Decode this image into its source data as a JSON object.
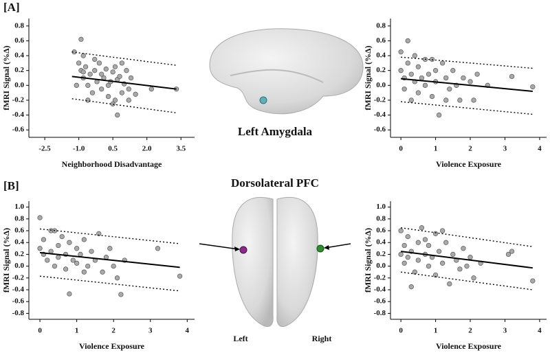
{
  "figure": {
    "panel_a": "[A]",
    "panel_b": "[B]",
    "region_a": "Left Amygdala",
    "region_b": "Dorsolateral PFC",
    "left": "Left",
    "right": "Right"
  },
  "chart_data": [
    {
      "type": "scatter",
      "xlabel": "Neighborhood Disadvantage",
      "ylabel": "fMRI Signal (%Δ)",
      "xlim": [
        -3.2,
        4.1
      ],
      "ylim": [
        -0.7,
        0.9
      ],
      "xticks": [
        -2.5,
        {
          "value": -1,
          "label": "-1.0"
        },
        0.5,
        {
          "value": 2,
          "label": "2.0"
        },
        3.5
      ],
      "yticks": [
        0.8,
        0.6,
        0.4,
        0.2,
        {
          "value": 0,
          "label": "0.0"
        },
        -0.2,
        -0.4,
        -0.6
      ],
      "points": [
        [
          -1.2,
          0.45
        ],
        [
          -1.0,
          0.3
        ],
        [
          -0.9,
          0.2
        ],
        [
          -0.8,
          0.1
        ],
        [
          -0.7,
          0.25
        ],
        [
          -0.6,
          0.0
        ],
        [
          -0.5,
          0.15
        ],
        [
          -0.4,
          -0.1
        ],
        [
          -0.3,
          0.2
        ],
        [
          -0.2,
          0.05
        ],
        [
          -0.1,
          0.3
        ],
        [
          0.0,
          -0.05
        ],
        [
          0.1,
          0.1
        ],
        [
          0.2,
          0.22
        ],
        [
          0.3,
          -0.15
        ],
        [
          0.4,
          0.05
        ],
        [
          0.5,
          0.18
        ],
        [
          0.6,
          -0.2
        ],
        [
          0.7,
          0.08
        ],
        [
          0.8,
          0.12
        ],
        [
          0.9,
          -0.1
        ],
        [
          1.0,
          0.02
        ],
        [
          1.1,
          0.2
        ],
        [
          1.2,
          -0.05
        ],
        [
          1.3,
          0.1
        ],
        [
          1.5,
          -0.12
        ],
        [
          -0.9,
          0.62
        ],
        [
          -0.6,
          -0.2
        ],
        [
          -0.3,
          0.35
        ],
        [
          0.0,
          0.15
        ],
        [
          0.3,
          0.0
        ],
        [
          0.6,
          0.25
        ],
        [
          0.9,
          0.3
        ],
        [
          1.2,
          -0.2
        ],
        [
          -1.1,
          0.0
        ],
        [
          -0.8,
          0.18
        ],
        [
          0.5,
          -0.25
        ],
        [
          2.2,
          -0.05
        ],
        [
          3.3,
          -0.05
        ],
        [
          -0.8,
          0.4
        ],
        [
          0.7,
          -0.4
        ]
      ],
      "fit": {
        "x": [
          -1.3,
          3.3
        ],
        "values": [
          0.12,
          -0.05
        ]
      },
      "upper": {
        "x": [
          -1.3,
          3.3
        ],
        "values": [
          0.45,
          0.27
        ]
      },
      "lower": {
        "x": [
          -1.3,
          3.3
        ],
        "values": [
          -0.18,
          -0.37
        ]
      }
    },
    {
      "type": "scatter",
      "xlabel": "Violence Exposure",
      "ylabel": "fMRI Signal (%Δ)",
      "xlim": [
        -0.3,
        4.2
      ],
      "ylim": [
        -0.7,
        0.9
      ],
      "xticks": [
        0,
        1,
        2,
        3,
        4
      ],
      "yticks": [
        0.8,
        0.6,
        0.4,
        0.2,
        {
          "value": 0,
          "label": "0.0"
        },
        -0.2,
        -0.4,
        -0.6
      ],
      "points": [
        [
          0.0,
          0.45
        ],
        [
          0.0,
          0.2
        ],
        [
          0.1,
          0.1
        ],
        [
          0.1,
          -0.05
        ],
        [
          0.2,
          0.6
        ],
        [
          0.2,
          0.3
        ],
        [
          0.3,
          0.15
        ],
        [
          0.3,
          -0.2
        ],
        [
          0.4,
          0.05
        ],
        [
          0.5,
          0.25
        ],
        [
          0.5,
          -0.1
        ],
        [
          0.6,
          0.1
        ],
        [
          0.7,
          0.35
        ],
        [
          0.7,
          0.0
        ],
        [
          0.8,
          0.15
        ],
        [
          0.9,
          -0.15
        ],
        [
          1.0,
          0.2
        ],
        [
          1.0,
          0.05
        ],
        [
          1.1,
          -0.4
        ],
        [
          1.2,
          0.3
        ],
        [
          1.3,
          0.1
        ],
        [
          1.4,
          -0.05
        ],
        [
          1.5,
          0.2
        ],
        [
          1.6,
          0.0
        ],
        [
          1.7,
          -0.2
        ],
        [
          1.8,
          0.1
        ],
        [
          2.0,
          0.05
        ],
        [
          2.1,
          -0.2
        ],
        [
          2.2,
          0.15
        ],
        [
          2.5,
          0.0
        ],
        [
          3.2,
          0.12
        ],
        [
          3.8,
          -0.02
        ],
        [
          0.4,
          0.4
        ],
        [
          0.9,
          0.35
        ],
        [
          1.3,
          -0.2
        ]
      ],
      "fit": {
        "x": [
          0,
          3.8
        ],
        "values": [
          0.09,
          -0.08
        ]
      },
      "upper": {
        "x": [
          0,
          3.8
        ],
        "values": [
          0.38,
          0.23
        ]
      },
      "lower": {
        "x": [
          0,
          3.8
        ],
        "values": [
          -0.22,
          -0.39
        ]
      }
    },
    {
      "type": "scatter",
      "xlabel": "Violence Exposure",
      "ylabel": "fMRI Signal (%Δ)",
      "xlim": [
        -0.3,
        4.2
      ],
      "ylim": [
        -0.9,
        1.1
      ],
      "xticks": [
        0,
        1,
        2,
        3,
        4
      ],
      "yticks": [
        {
          "value": 1,
          "label": "1.0"
        },
        0.8,
        0.6,
        0.4,
        0.2,
        {
          "value": 0,
          "label": "0.0"
        },
        -0.2,
        -0.4,
        -0.6,
        -0.8
      ],
      "points": [
        [
          0.0,
          0.82
        ],
        [
          0.0,
          0.3
        ],
        [
          0.1,
          0.2
        ],
        [
          0.1,
          0.45
        ],
        [
          0.2,
          0.1
        ],
        [
          0.3,
          0.6
        ],
        [
          0.3,
          0.25
        ],
        [
          0.4,
          0.0
        ],
        [
          0.5,
          0.35
        ],
        [
          0.5,
          0.15
        ],
        [
          0.6,
          0.5
        ],
        [
          0.7,
          0.2
        ],
        [
          0.7,
          -0.05
        ],
        [
          0.8,
          0.4
        ],
        [
          0.8,
          -0.47
        ],
        [
          0.9,
          0.1
        ],
        [
          1.0,
          0.3
        ],
        [
          1.0,
          0.05
        ],
        [
          1.1,
          0.2
        ],
        [
          1.2,
          0.45
        ],
        [
          1.3,
          0.0
        ],
        [
          1.4,
          0.25
        ],
        [
          1.5,
          0.1
        ],
        [
          1.6,
          0.55
        ],
        [
          1.7,
          -0.1
        ],
        [
          1.8,
          0.15
        ],
        [
          1.9,
          0.3
        ],
        [
          2.0,
          0.0
        ],
        [
          2.1,
          -0.2
        ],
        [
          2.2,
          -0.48
        ],
        [
          2.3,
          0.1
        ],
        [
          3.2,
          0.3
        ],
        [
          3.8,
          -0.17
        ],
        [
          0.4,
          0.6
        ],
        [
          1.2,
          -0.1
        ]
      ],
      "fit": {
        "x": [
          0,
          3.8
        ],
        "values": [
          0.23,
          -0.02
        ]
      },
      "upper": {
        "x": [
          0,
          3.8
        ],
        "values": [
          0.63,
          0.38
        ]
      },
      "lower": {
        "x": [
          0,
          3.8
        ],
        "values": [
          -0.17,
          -0.42
        ]
      }
    },
    {
      "type": "scatter",
      "xlabel": "Violence Exposure",
      "ylabel": "fMRI Signal (%Δ)",
      "xlim": [
        -0.3,
        4.2
      ],
      "ylim": [
        -0.9,
        1.1
      ],
      "xticks": [
        0,
        1,
        2,
        3,
        4
      ],
      "yticks": [
        {
          "value": 1,
          "label": "1.0"
        },
        0.8,
        0.6,
        0.4,
        0.2,
        {
          "value": 0,
          "label": "0.0"
        },
        -0.2,
        -0.4,
        -0.6,
        -0.8
      ],
      "points": [
        [
          0.0,
          0.6
        ],
        [
          0.0,
          0.2
        ],
        [
          0.1,
          0.35
        ],
        [
          0.1,
          0.05
        ],
        [
          0.2,
          0.5
        ],
        [
          0.2,
          0.15
        ],
        [
          0.3,
          0.25
        ],
        [
          0.4,
          -0.1
        ],
        [
          0.5,
          0.4
        ],
        [
          0.5,
          0.1
        ],
        [
          0.6,
          0.65
        ],
        [
          0.7,
          0.2
        ],
        [
          0.8,
          0.0
        ],
        [
          0.8,
          0.35
        ],
        [
          0.9,
          0.15
        ],
        [
          1.0,
          0.55
        ],
        [
          1.0,
          -0.15
        ],
        [
          1.1,
          0.25
        ],
        [
          1.2,
          0.05
        ],
        [
          1.3,
          0.4
        ],
        [
          1.4,
          -0.3
        ],
        [
          1.5,
          0.2
        ],
        [
          1.6,
          0.1
        ],
        [
          1.7,
          -0.05
        ],
        [
          1.8,
          0.3
        ],
        [
          1.9,
          0.0
        ],
        [
          2.0,
          0.15
        ],
        [
          2.1,
          -0.2
        ],
        [
          2.3,
          0.05
        ],
        [
          3.1,
          0.2
        ],
        [
          3.2,
          0.25
        ],
        [
          3.8,
          -0.25
        ],
        [
          0.3,
          -0.35
        ],
        [
          1.2,
          0.6
        ],
        [
          0.7,
          0.45
        ]
      ],
      "fit": {
        "x": [
          0,
          3.8
        ],
        "values": [
          0.25,
          -0.03
        ]
      },
      "upper": {
        "x": [
          0,
          3.8
        ],
        "values": [
          0.65,
          0.33
        ]
      },
      "lower": {
        "x": [
          0,
          3.8
        ],
        "values": [
          -0.1,
          -0.4
        ]
      }
    }
  ]
}
